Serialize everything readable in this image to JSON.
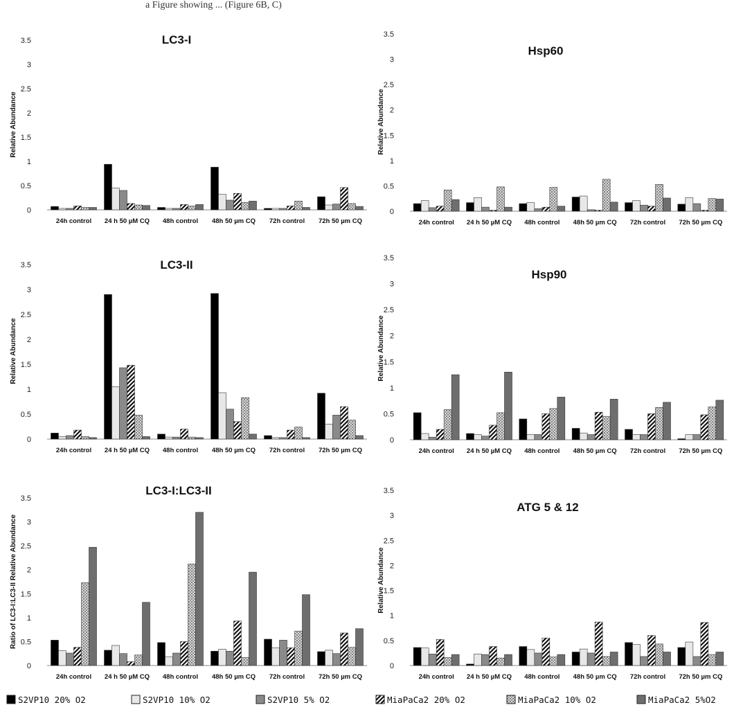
{
  "header_text": "a Figure showing ... (Figure 6B, C)",
  "series_styles": [
    {
      "fill": "#000000",
      "pattern": "solid"
    },
    {
      "fill": "#e8e8e8",
      "pattern": "solid"
    },
    {
      "fill": "#8a8a8a",
      "pattern": "solid"
    },
    {
      "fill": "#ffffff",
      "pattern": "diag"
    },
    {
      "fill": "#ffffff",
      "pattern": "dots"
    },
    {
      "fill": "#6e6e6e",
      "pattern": "solid"
    }
  ],
  "legend": [
    "S2VP10 20% O2",
    "S2VP10 10% O2",
    "S2VP10 5% O2",
    "MiaPaCa2 20% O2",
    "MiaPaCa2 10% O2",
    "MiaPaCa2 5%O2"
  ],
  "chart_data": [
    {
      "type": "bar",
      "title": "LC3-I",
      "ylabel": "Relative Abundance",
      "ylim": [
        0,
        3.5
      ],
      "yticks": [
        "0",
        "0.5",
        "1",
        "1.5",
        "2",
        "2.5",
        "3",
        "3.5"
      ],
      "categories": [
        "24h control",
        "24 h 50 µM CQ",
        "48h control",
        "48h 50 µm CQ",
        "72h control",
        "72h 50 µm CQ"
      ],
      "series": [
        {
          "name": "S2VP10 20% O2",
          "values": [
            0.07,
            0.94,
            0.05,
            0.88,
            0.03,
            0.27
          ]
        },
        {
          "name": "S2VP10 10% O2",
          "values": [
            0.03,
            0.45,
            0.03,
            0.32,
            0.03,
            0.1
          ]
        },
        {
          "name": "S2VP10 5% O2",
          "values": [
            0.03,
            0.4,
            0.03,
            0.2,
            0.03,
            0.12
          ]
        },
        {
          "name": "MiaPaCa2 20% O2",
          "values": [
            0.08,
            0.13,
            0.11,
            0.34,
            0.08,
            0.46
          ]
        },
        {
          "name": "MiaPaCa2 10% O2",
          "values": [
            0.05,
            0.1,
            0.08,
            0.15,
            0.18,
            0.13
          ]
        },
        {
          "name": "MiaPaCa2 5%O2",
          "values": [
            0.05,
            0.09,
            0.11,
            0.18,
            0.05,
            0.07
          ]
        }
      ]
    },
    {
      "type": "bar",
      "title": "Hsp60",
      "ylabel": "Relative Abundance",
      "ylim": [
        0,
        3.5
      ],
      "yticks": [
        "0",
        "0.5",
        "1",
        "1.5",
        "2",
        "2.5",
        "3",
        "3.5"
      ],
      "categories": [
        "24h control",
        "24 h 50 µM CQ",
        "48h control",
        "48h 50 µm CQ",
        "72h control",
        "72h 50 µm CQ"
      ],
      "series": [
        {
          "name": "S2VP10 20% O2",
          "values": [
            0.15,
            0.17,
            0.15,
            0.28,
            0.17,
            0.14
          ]
        },
        {
          "name": "S2VP10 10% O2",
          "values": [
            0.21,
            0.27,
            0.17,
            0.3,
            0.21,
            0.27
          ]
        },
        {
          "name": "S2VP10 5% O2",
          "values": [
            0.07,
            0.08,
            0.05,
            0.03,
            0.12,
            0.15
          ]
        },
        {
          "name": "MiaPaCa2 20% O2",
          "values": [
            0.1,
            0.02,
            0.08,
            0.02,
            0.1,
            0.02
          ]
        },
        {
          "name": "MiaPaCa2 10% O2",
          "values": [
            0.42,
            0.48,
            0.47,
            0.63,
            0.53,
            0.25
          ]
        },
        {
          "name": "MiaPaCa2 5%O2",
          "values": [
            0.23,
            0.08,
            0.1,
            0.18,
            0.26,
            0.24
          ]
        }
      ]
    },
    {
      "type": "bar",
      "title": "LC3-II",
      "ylabel": "Relative Abundance",
      "ylim": [
        0,
        3.5
      ],
      "yticks": [
        "0",
        "0.5",
        "1",
        "1.5",
        "2",
        "2.5",
        "3",
        "3.5"
      ],
      "categories": [
        "24h control",
        "24 h 50 µM CQ",
        "48h control",
        "48h 50 µm CQ",
        "72h control",
        "72h 50 µm CQ"
      ],
      "series": [
        {
          "name": "S2VP10 20% O2",
          "values": [
            0.12,
            2.9,
            0.1,
            2.92,
            0.07,
            0.92
          ]
        },
        {
          "name": "S2VP10 10% O2",
          "values": [
            0.05,
            1.05,
            0.04,
            0.93,
            0.03,
            0.3
          ]
        },
        {
          "name": "S2VP10 5% O2",
          "values": [
            0.07,
            1.43,
            0.04,
            0.6,
            0.03,
            0.48
          ]
        },
        {
          "name": "MiaPaCa2 20% O2",
          "values": [
            0.18,
            1.48,
            0.2,
            0.35,
            0.18,
            0.65
          ]
        },
        {
          "name": "MiaPaCa2 10% O2",
          "values": [
            0.05,
            0.48,
            0.04,
            0.83,
            0.24,
            0.38
          ]
        },
        {
          "name": "MiaPaCa2 5%O2",
          "values": [
            0.03,
            0.05,
            0.03,
            0.1,
            0.03,
            0.07
          ]
        }
      ]
    },
    {
      "type": "bar",
      "title": "Hsp90",
      "ylabel": "Relative Abundance",
      "ylim": [
        0,
        3.5
      ],
      "yticks": [
        "0",
        "0.5",
        "1",
        "1.5",
        "2",
        "2.5",
        "3",
        "3.5"
      ],
      "categories": [
        "24h control",
        "24 h 50 µM CQ",
        "48h control",
        "48h 50 µm CQ",
        "72h control",
        "72h 50 µm CQ"
      ],
      "series": [
        {
          "name": "S2VP10 20% O2",
          "values": [
            0.52,
            0.12,
            0.4,
            0.22,
            0.2,
            0.02
          ]
        },
        {
          "name": "S2VP10 10% O2",
          "values": [
            0.12,
            0.1,
            0.1,
            0.13,
            0.1,
            0.1
          ]
        },
        {
          "name": "S2VP10 5% O2",
          "values": [
            0.05,
            0.07,
            0.1,
            0.1,
            0.1,
            0.1
          ]
        },
        {
          "name": "MiaPaCa2 20% O2",
          "values": [
            0.2,
            0.28,
            0.5,
            0.53,
            0.5,
            0.48
          ]
        },
        {
          "name": "MiaPaCa2 10% O2",
          "values": [
            0.58,
            0.52,
            0.6,
            0.45,
            0.62,
            0.63
          ]
        },
        {
          "name": "MiaPaCa2 5%O2",
          "values": [
            1.25,
            1.3,
            0.82,
            0.78,
            0.72,
            0.76
          ]
        }
      ]
    },
    {
      "type": "bar",
      "title": "LC3-I:LC3-II",
      "ylabel": "Ratio of LC3-I:LC3-II Relative Abundance",
      "ylim": [
        0,
        3.5
      ],
      "yticks": [
        "0",
        "0.5",
        "1",
        "1.5",
        "2",
        "2.5",
        "3",
        "3.5"
      ],
      "categories": [
        "24h control",
        "24 h 50 µM CQ",
        "48h control",
        "48h 50 µm CQ",
        "72h control",
        "72h 50 µm CQ"
      ],
      "series": [
        {
          "name": "S2VP10 20% O2",
          "values": [
            0.53,
            0.32,
            0.48,
            0.3,
            0.55,
            0.29
          ]
        },
        {
          "name": "S2VP10 10% O2",
          "values": [
            0.31,
            0.42,
            0.18,
            0.34,
            0.37,
            0.32
          ]
        },
        {
          "name": "S2VP10 5% O2",
          "values": [
            0.26,
            0.25,
            0.26,
            0.3,
            0.53,
            0.25
          ]
        },
        {
          "name": "MiaPaCa2 20% O2",
          "values": [
            0.38,
            0.08,
            0.5,
            0.93,
            0.37,
            0.68
          ]
        },
        {
          "name": "MiaPaCa2 10% O2",
          "values": [
            1.73,
            0.22,
            2.12,
            0.17,
            0.72,
            0.38
          ]
        },
        {
          "name": "MiaPaCa2 5%O2",
          "values": [
            2.47,
            1.32,
            3.2,
            1.95,
            1.48,
            0.77
          ]
        }
      ]
    },
    {
      "type": "bar",
      "title": "ATG 5 & 12",
      "ylabel": "Relative Abundance",
      "ylim": [
        0,
        3.5
      ],
      "yticks": [
        "0",
        "0.5",
        "1",
        "1.5",
        "2",
        "2.5",
        "3",
        "3.5"
      ],
      "categories": [
        "24h control",
        "24 h 50 µM CQ",
        "48h control",
        "48h 50 µm CQ",
        "72h control",
        "72h 50 µm CQ"
      ],
      "series": [
        {
          "name": "S2VP10 20% O2",
          "values": [
            0.36,
            0.03,
            0.38,
            0.27,
            0.46,
            0.36
          ]
        },
        {
          "name": "S2VP10 10% O2",
          "values": [
            0.35,
            0.23,
            0.32,
            0.33,
            0.42,
            0.47
          ]
        },
        {
          "name": "S2VP10 5% O2",
          "values": [
            0.23,
            0.22,
            0.25,
            0.25,
            0.18,
            0.18
          ]
        },
        {
          "name": "MiaPaCa2 20% O2",
          "values": [
            0.52,
            0.38,
            0.55,
            0.87,
            0.6,
            0.86
          ]
        },
        {
          "name": "MiaPaCa2 10% O2",
          "values": [
            0.16,
            0.15,
            0.17,
            0.18,
            0.43,
            0.22
          ]
        },
        {
          "name": "MiaPaCa2 5%O2",
          "values": [
            0.22,
            0.22,
            0.22,
            0.27,
            0.27,
            0.27
          ]
        }
      ]
    }
  ]
}
